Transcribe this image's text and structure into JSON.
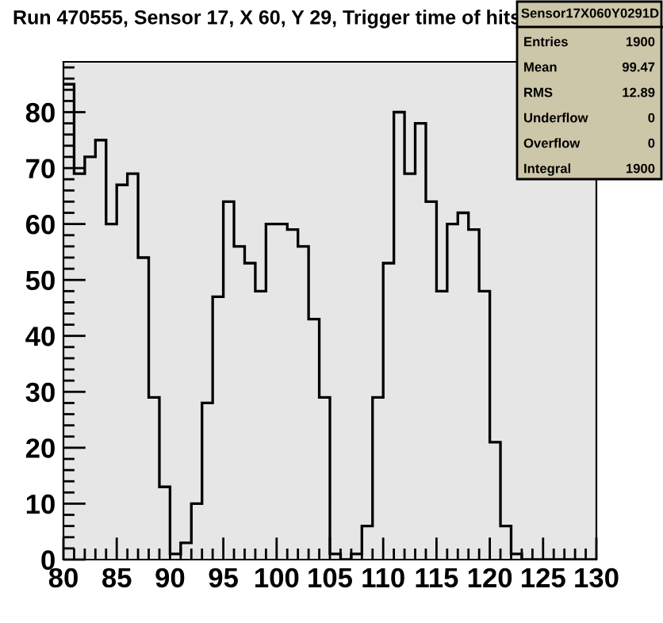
{
  "chart_data": {
    "type": "histogram",
    "title": "Run 470555, Sensor 17, X 60, Y 29, Trigger time of hits",
    "bins": [
      80,
      81,
      82,
      83,
      84,
      85,
      86,
      87,
      88,
      89,
      90,
      91,
      92,
      93,
      94,
      95,
      96,
      97,
      98,
      99,
      100,
      101,
      102,
      103,
      104,
      105,
      106,
      107,
      108,
      109,
      110,
      111,
      112,
      113,
      114,
      115,
      116,
      117,
      118,
      119,
      120,
      121,
      122,
      123,
      124,
      125,
      126,
      127,
      128,
      129,
      130
    ],
    "values": [
      85,
      69,
      72,
      75,
      60,
      67,
      69,
      54,
      29,
      13,
      1,
      3,
      10,
      28,
      47,
      64,
      56,
      53,
      48,
      60,
      60,
      59,
      56,
      43,
      29,
      1,
      0,
      1,
      6,
      29,
      53,
      80,
      69,
      78,
      64,
      48,
      60,
      62,
      59,
      48,
      21,
      6,
      1,
      0,
      0,
      0,
      0,
      0,
      0,
      0
    ],
    "color": "#000000",
    "xlim": [
      80,
      130
    ],
    "xticks": [
      80,
      85,
      90,
      95,
      100,
      105,
      110,
      115,
      120,
      125,
      130
    ],
    "ylim": [
      0,
      89
    ],
    "yticks": [
      0,
      10,
      20,
      30,
      40,
      50,
      60,
      70,
      80
    ],
    "grid": false,
    "annotations": [
      "Sensor17X060Y0291D",
      "Entries",
      "1900",
      "Mean",
      "99.47",
      "RMS",
      "12.89",
      "Underflow",
      "0",
      "Overflow",
      "0",
      "Integral",
      "1900"
    ]
  }
}
